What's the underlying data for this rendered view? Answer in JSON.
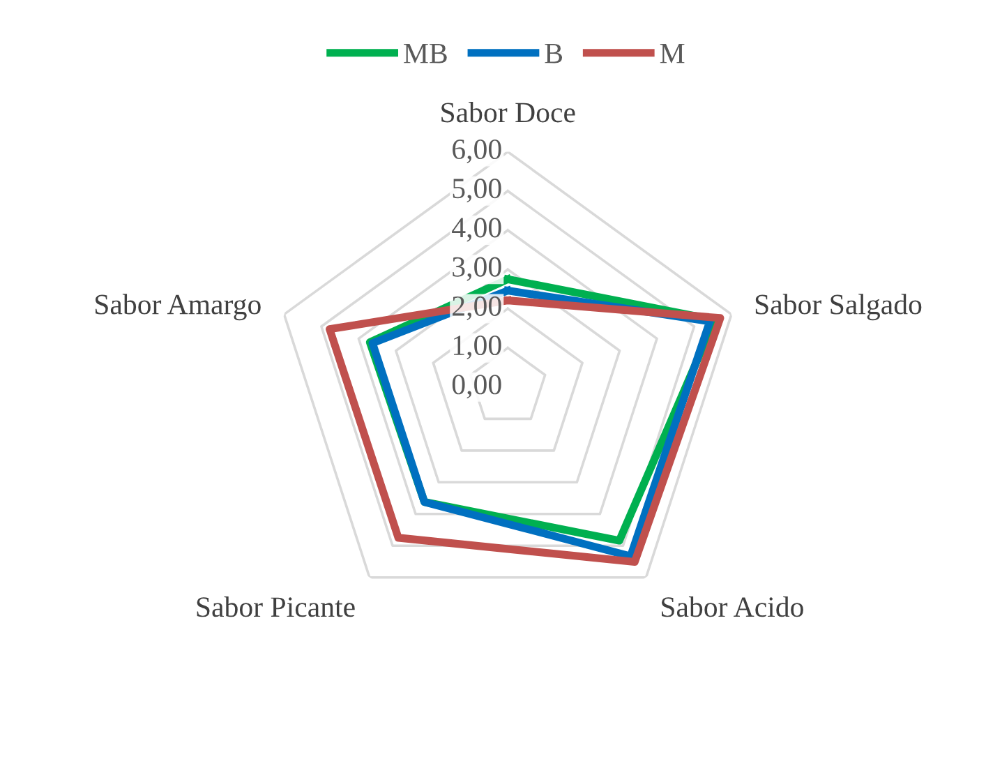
{
  "chart_data": {
    "type": "radar",
    "categories": [
      "Sabor Doce",
      "Sabor Salgado",
      "Sabor Acido",
      "Sabor Picante",
      "Sabor Amargo"
    ],
    "series": [
      {
        "name": "MB",
        "color": "#00b050",
        "values": [
          2.75,
          5.55,
          4.84,
          3.62,
          3.7
        ]
      },
      {
        "name": "B",
        "color": "#0070c0",
        "values": [
          2.46,
          5.42,
          5.33,
          3.62,
          3.63
        ]
      },
      {
        "name": "M",
        "color": "#c0504d",
        "values": [
          2.21,
          5.7,
          5.51,
          4.75,
          4.78
        ]
      }
    ],
    "ylim": [
      0,
      6
    ],
    "yticks": [
      {
        "value": 0,
        "label": "0,00"
      },
      {
        "value": 1,
        "label": "1,00"
      },
      {
        "value": 2,
        "label": "2,00"
      },
      {
        "value": 3,
        "label": "3,00"
      },
      {
        "value": 4,
        "label": "4,00"
      },
      {
        "value": 5,
        "label": "5,00"
      },
      {
        "value": 6,
        "label": "6,00"
      }
    ],
    "grid": true,
    "legend": "top",
    "marker": "none",
    "line_style": "solid"
  }
}
